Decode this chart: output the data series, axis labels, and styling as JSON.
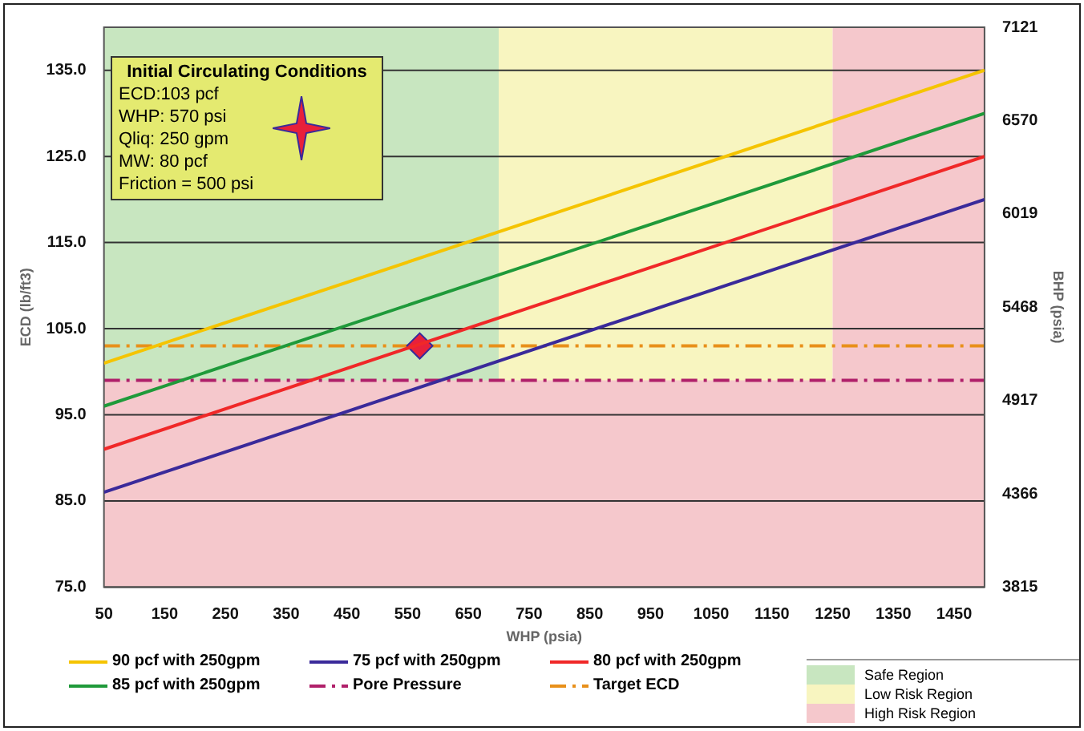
{
  "chart_data": {
    "type": "line",
    "xlabel": "WHP (psia)",
    "ylabel": "ECD (lb/ft3)",
    "y2label": "BHP (psia)",
    "xlim": [
      50,
      1500
    ],
    "xticks": [
      50,
      150,
      250,
      350,
      450,
      550,
      650,
      750,
      850,
      950,
      1050,
      1150,
      1250,
      1350,
      1450
    ],
    "ylim": [
      75,
      140
    ],
    "yticks": [
      {
        "value": 75,
        "label": "75.0"
      },
      {
        "value": 85,
        "label": "85.0"
      },
      {
        "value": 95,
        "label": "95.0"
      },
      {
        "value": 105,
        "label": "105.0"
      },
      {
        "value": 115,
        "label": "115.0"
      },
      {
        "value": 125,
        "label": "125.0"
      },
      {
        "value": 135,
        "label": "135.0"
      }
    ],
    "y2lim": [
      3815,
      7121
    ],
    "y2ticks": [
      3815,
      4366,
      4917,
      5468,
      6019,
      6570,
      7121
    ],
    "grid": "y",
    "legend": "bottom",
    "marker": "none",
    "line_style": "solid",
    "series": [
      {
        "name": "90 pcf with 250gpm",
        "color": "#f5c400",
        "x": [
          50,
          1500
        ],
        "values": [
          101,
          135
        ]
      },
      {
        "name": "75 pcf with 250gpm",
        "color": "#3a2a9a",
        "x": [
          50,
          1500
        ],
        "values": [
          86,
          120
        ]
      },
      {
        "name": "80 pcf with 250gpm",
        "color": "#f02828",
        "x": [
          50,
          1500
        ],
        "values": [
          91,
          125
        ]
      },
      {
        "name": "85 pcf with 250gpm",
        "color": "#1f9a3a",
        "x": [
          50,
          1500
        ],
        "values": [
          96,
          130
        ]
      },
      {
        "type": "scatter",
        "marker": "diamond",
        "color": "#e8203a",
        "x": [
          570
        ],
        "values": [
          103
        ]
      }
    ],
    "ref_lines": [
      {
        "axis": "y",
        "value": 99,
        "label": "Pore Pressure",
        "color": "#b0206a",
        "line_style": "dashdot"
      },
      {
        "axis": "y",
        "value": 103,
        "label": "Target ECD",
        "color": "#e8901a",
        "line_style": "dashdot"
      }
    ],
    "bands": [
      {
        "axis": "x",
        "from": 50,
        "to": 700,
        "label": "Safe Region",
        "color": "#c8e6c0"
      },
      {
        "axis": "x",
        "from": 700,
        "to": 1250,
        "label": "Low Risk Region",
        "color": "#f8f5c0"
      },
      {
        "axis": "x",
        "from": 1250,
        "to": 1500,
        "label": "High Risk Region",
        "color": "#f5c8cc"
      },
      {
        "axis": "y",
        "from": 75,
        "to": 99,
        "color": "#f5c8cc"
      }
    ],
    "annotations": [
      "Initial Circulating Conditions",
      "ECD:103 pcf",
      "WHP: 570 psi",
      "Qliq:  250 gpm",
      "MW: 80 pcf",
      "Friction = 500 psi"
    ]
  }
}
